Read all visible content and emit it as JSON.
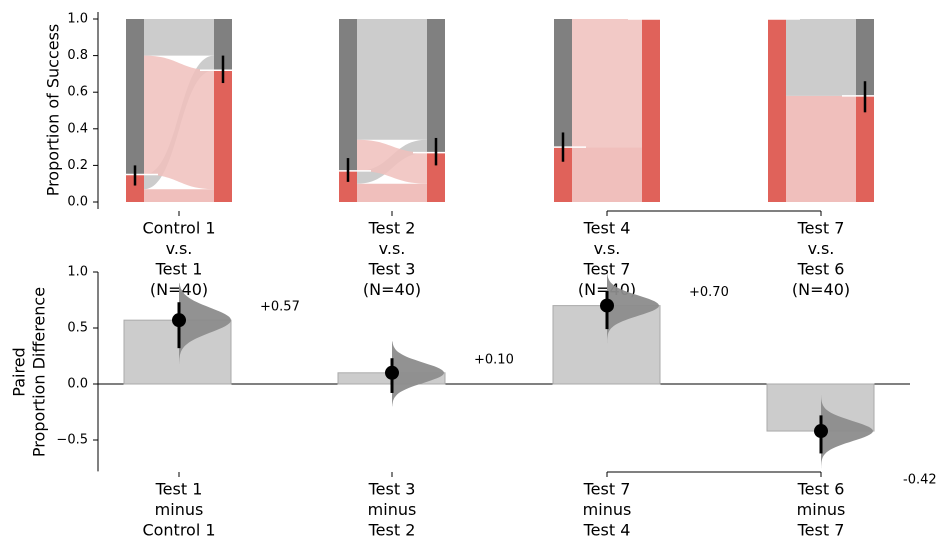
{
  "colors": {
    "success": "#e0625a",
    "success_light": "#f0bfbc",
    "failure": "#808080",
    "failure_light": "#cccccc",
    "bar_fill": "#cccccc",
    "bar_edge": "#aaaaaa",
    "dist_fill": "#8c8c8c",
    "marker": "#000000"
  },
  "chart_data": [
    {
      "type": "slopegraph",
      "ylabel": "Proportion of Success",
      "ylim": [
        0,
        1
      ],
      "yticks": [
        "0.0",
        "0.2",
        "0.4",
        "0.6",
        "0.8",
        "1.0"
      ],
      "groups": [
        {
          "label_lines": [
            "Control 1",
            "v.s.",
            "Test 1",
            "(N=40)"
          ],
          "left_success": 0.15,
          "right_success": 0.72,
          "flows": {
            "success_to_success": 0.07,
            "success_to_failure": 0.08,
            "failure_to_success": 0.65,
            "failure_to_failure": 0.2
          },
          "left_ci": [
            0.09,
            0.2
          ],
          "right_ci": [
            0.65,
            0.8
          ]
        },
        {
          "label_lines": [
            "Test 2",
            "v.s.",
            "Test 3",
            "(N=40)"
          ],
          "left_success": 0.17,
          "right_success": 0.27,
          "flows": {
            "success_to_success": 0.1,
            "success_to_failure": 0.07,
            "failure_to_success": 0.17,
            "failure_to_failure": 0.66
          },
          "left_ci": [
            0.11,
            0.24
          ],
          "right_ci": [
            0.2,
            0.35
          ]
        },
        {
          "label_lines": [
            "Test 4",
            "v.s.",
            "Test 7",
            "(N=40)"
          ],
          "left_success": 0.3,
          "right_success": 1.0,
          "flows": {
            "success_to_success": 0.3,
            "success_to_failure": 0.0,
            "failure_to_success": 0.7,
            "failure_to_failure": 0.0
          },
          "left_ci": [
            0.22,
            0.38
          ],
          "right_ci": null
        },
        {
          "label_lines": [
            "Test 7",
            "v.s.",
            "Test 6",
            "(N=40)"
          ],
          "left_success": 1.0,
          "right_success": 0.58,
          "flows": {
            "success_to_success": 0.58,
            "success_to_failure": 0.42,
            "failure_to_success": 0.0,
            "failure_to_failure": 0.0
          },
          "left_ci": null,
          "right_ci": [
            0.49,
            0.66
          ]
        }
      ],
      "brackets": [
        [
          2,
          3
        ]
      ]
    },
    {
      "type": "bar",
      "ylabel_lines": [
        "Paired",
        "Proportion Difference"
      ],
      "ylim": [
        -0.78,
        1.0
      ],
      "yticks": [
        "−0.5",
        "0.0",
        "0.5",
        "1.0"
      ],
      "ytick_values": [
        -0.5,
        0.0,
        0.5,
        1.0
      ],
      "categories": [
        [
          "Test 1",
          "minus",
          "Control 1"
        ],
        [
          "Test 3",
          "minus",
          "Test 2"
        ],
        [
          "Test 7",
          "minus",
          "Test 4"
        ],
        [
          "Test 6",
          "minus",
          "Test 7"
        ]
      ],
      "values": [
        0.57,
        0.1,
        0.7,
        -0.42
      ],
      "value_labels": [
        "+0.57",
        "+0.10",
        "+0.70",
        "-0.42"
      ],
      "ci": [
        [
          0.32,
          0.73
        ],
        [
          -0.08,
          0.23
        ],
        [
          0.49,
          0.83
        ],
        [
          -0.62,
          -0.28
        ]
      ],
      "distributions": [
        {
          "range": [
            0.18,
            0.9
          ],
          "sd": 0.11
        },
        {
          "range": [
            -0.2,
            0.38
          ],
          "sd": 0.09
        },
        {
          "range": [
            0.35,
            0.98
          ],
          "sd": 0.09
        },
        {
          "range": [
            -0.78,
            -0.1
          ],
          "sd": 0.09
        }
      ],
      "brackets": [
        [
          2,
          3
        ]
      ]
    }
  ]
}
